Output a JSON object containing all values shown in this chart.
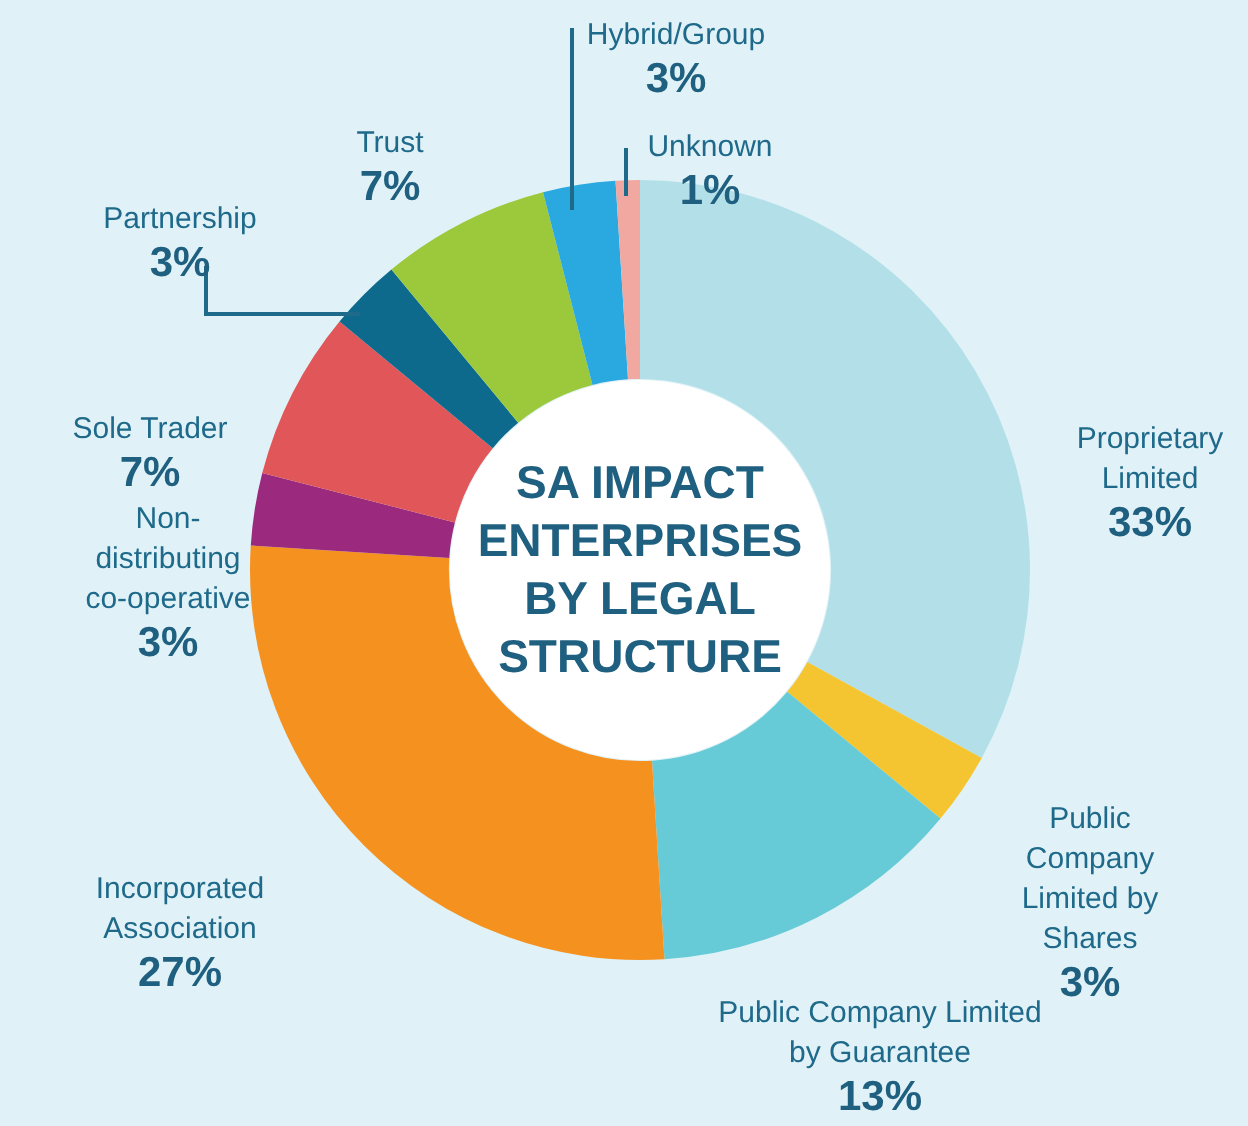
{
  "chart_data": {
    "type": "donut",
    "title": "SA IMPACT ENTERPRISES BY LEGAL STRUCTURE",
    "categories": [
      "Proprietary Limited",
      "Public Company Limited by Shares",
      "Public Company Limited by Guarantee",
      "Incorporated Association",
      "Non-distributing co-operative",
      "Sole Trader",
      "Partnership",
      "Trust",
      "Hybrid/Group",
      "Unknown"
    ],
    "values": [
      33,
      3,
      13,
      27,
      3,
      7,
      3,
      7,
      3,
      1
    ],
    "value_labels": [
      "33%",
      "3%",
      "13%",
      "27%",
      "3%",
      "7%",
      "3%",
      "7%",
      "3%",
      "1%"
    ],
    "colors": [
      "#b3e0e8",
      "#f5c531",
      "#66cbd6",
      "#f5921f",
      "#9b2a7e",
      "#e15759",
      "#0e6a8c",
      "#9cc93b",
      "#2aa9e0",
      "#f0a8a0"
    ],
    "legend": false
  }
}
